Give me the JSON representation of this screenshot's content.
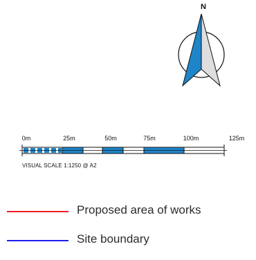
{
  "north_arrow": {
    "letter": "N",
    "icon": "north-arrow-icon",
    "colors": {
      "left_half": "#1f85c9",
      "right_half": "#dedede",
      "outline": "#111111"
    }
  },
  "scale_bar": {
    "tick_labels": [
      "0m",
      "25m",
      "50m",
      "75m",
      "100m",
      "125m"
    ],
    "caption": "VISUAL SCALE 1:1250 @ A2",
    "fill_color": "#1f85c9"
  },
  "legend": {
    "items": [
      {
        "label": "Proposed area of works",
        "color": "#ee1c25"
      },
      {
        "label": "Site boundary",
        "color": "#1c1cf0"
      }
    ]
  }
}
